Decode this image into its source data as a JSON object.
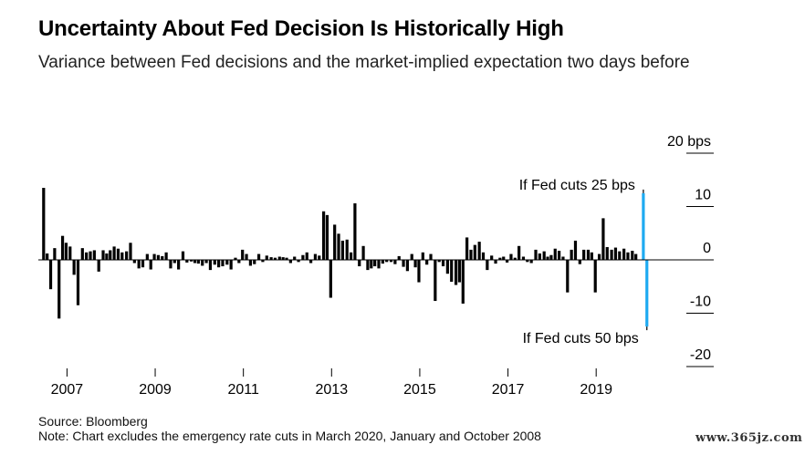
{
  "header": {
    "title": "Uncertainty About Fed Decision Is Historically High",
    "subtitle": "Variance between Fed decisions and the market-implied expectation two days before"
  },
  "footer": {
    "source": "Source: Bloomberg",
    "note": "Note: Chart excludes the emergency rate cuts in March 2020, January and October 2008"
  },
  "watermark": "www.365jz.com",
  "colors": {
    "bars": "#000000",
    "highlight": "#1eaaf1",
    "axis": "#000000"
  },
  "chart_data": {
    "type": "bar",
    "title": "Uncertainty About Fed Decision Is Historically High",
    "xlabel": "",
    "ylabel": "bps",
    "ylim": [
      -20,
      20
    ],
    "xlim": [
      2006.35,
      2020.3
    ],
    "y_ticks": [
      {
        "value": 20,
        "label": "20 bps"
      },
      {
        "value": 10,
        "label": "10"
      },
      {
        "value": 0,
        "label": "0"
      },
      {
        "value": -10,
        "label": "-10"
      },
      {
        "value": -20,
        "label": "-20"
      }
    ],
    "x_ticks": [
      {
        "value": 2007,
        "label": "2007"
      },
      {
        "value": 2009,
        "label": "2009"
      },
      {
        "value": 2011,
        "label": "2011"
      },
      {
        "value": 2013,
        "label": "2013"
      },
      {
        "value": 2015,
        "label": "2015"
      },
      {
        "value": 2017,
        "label": "2017"
      },
      {
        "value": 2019,
        "label": "2019"
      }
    ],
    "series": [
      {
        "name": "Variance (bps)",
        "values": [
          [
            2006.47,
            13.5
          ],
          [
            2006.55,
            1.2
          ],
          [
            2006.63,
            -5.5
          ],
          [
            2006.72,
            2.2
          ],
          [
            2006.82,
            -11
          ],
          [
            2006.9,
            4.5
          ],
          [
            2006.98,
            3.2
          ],
          [
            2007.07,
            2.5
          ],
          [
            2007.16,
            -2.8
          ],
          [
            2007.25,
            -8.5
          ],
          [
            2007.35,
            2.2
          ],
          [
            2007.44,
            1.4
          ],
          [
            2007.53,
            1.6
          ],
          [
            2007.62,
            1.8
          ],
          [
            2007.72,
            -2.2
          ],
          [
            2007.82,
            1.8
          ],
          [
            2007.9,
            1.2
          ],
          [
            2007.98,
            1.8
          ],
          [
            2008.07,
            2.5
          ],
          [
            2008.16,
            2.1
          ],
          [
            2008.25,
            1.4
          ],
          [
            2008.35,
            1.6
          ],
          [
            2008.44,
            3.2
          ],
          [
            2008.53,
            -0.6
          ],
          [
            2008.63,
            -1.6
          ],
          [
            2008.72,
            -1.4
          ],
          [
            2008.82,
            1.1
          ],
          [
            2008.9,
            -1.8
          ],
          [
            2008.98,
            1.1
          ],
          [
            2009.07,
            0.9
          ],
          [
            2009.16,
            0.7
          ],
          [
            2009.25,
            1.4
          ],
          [
            2009.35,
            -1.6
          ],
          [
            2009.44,
            -0.6
          ],
          [
            2009.53,
            -1.8
          ],
          [
            2009.63,
            1.6
          ],
          [
            2009.72,
            -0.5
          ],
          [
            2009.82,
            -0.3
          ],
          [
            2009.9,
            -0.6
          ],
          [
            2009.98,
            -0.7
          ],
          [
            2010.07,
            -1.1
          ],
          [
            2010.16,
            -0.6
          ],
          [
            2010.25,
            -1.9
          ],
          [
            2010.35,
            -0.9
          ],
          [
            2010.44,
            -1.4
          ],
          [
            2010.53,
            -1.2
          ],
          [
            2010.63,
            -0.9
          ],
          [
            2010.72,
            -1.8
          ],
          [
            2010.82,
            0.4
          ],
          [
            2010.9,
            -0.6
          ],
          [
            2010.98,
            1.9
          ],
          [
            2011.07,
            1.1
          ],
          [
            2011.16,
            -1.1
          ],
          [
            2011.25,
            -0.8
          ],
          [
            2011.35,
            1.1
          ],
          [
            2011.44,
            -0.4
          ],
          [
            2011.53,
            0.8
          ],
          [
            2011.63,
            0.5
          ],
          [
            2011.72,
            0.4
          ],
          [
            2011.82,
            0.6
          ],
          [
            2011.9,
            0.5
          ],
          [
            2011.98,
            0.4
          ],
          [
            2012.07,
            -0.6
          ],
          [
            2012.16,
            0.6
          ],
          [
            2012.25,
            -0.4
          ],
          [
            2012.35,
            0.9
          ],
          [
            2012.44,
            1.4
          ],
          [
            2012.53,
            -0.6
          ],
          [
            2012.63,
            1.1
          ],
          [
            2012.72,
            0.8
          ],
          [
            2012.82,
            9.1
          ],
          [
            2012.9,
            8.4
          ],
          [
            2012.98,
            -7.1
          ],
          [
            2013.07,
            6.6
          ],
          [
            2013.16,
            4.9
          ],
          [
            2013.25,
            3.6
          ],
          [
            2013.35,
            3.8
          ],
          [
            2013.44,
            1.4
          ],
          [
            2013.53,
            10.6
          ],
          [
            2013.63,
            -1.2
          ],
          [
            2013.72,
            2.6
          ],
          [
            2013.82,
            -1.9
          ],
          [
            2013.9,
            -1.6
          ],
          [
            2013.98,
            -1.2
          ],
          [
            2014.07,
            -1.6
          ],
          [
            2014.16,
            -0.7
          ],
          [
            2014.25,
            -0.4
          ],
          [
            2014.35,
            -0.4
          ],
          [
            2014.44,
            -0.8
          ],
          [
            2014.53,
            0.7
          ],
          [
            2014.63,
            -1.3
          ],
          [
            2014.72,
            -2.1
          ],
          [
            2014.82,
            1.1
          ],
          [
            2014.9,
            -1.4
          ],
          [
            2014.98,
            -4.2
          ],
          [
            2015.07,
            1.4
          ],
          [
            2015.16,
            -0.9
          ],
          [
            2015.25,
            1.1
          ],
          [
            2015.35,
            -7.7
          ],
          [
            2015.44,
            -0.4
          ],
          [
            2015.53,
            -1.2
          ],
          [
            2015.63,
            -2.6
          ],
          [
            2015.72,
            -4.1
          ],
          [
            2015.82,
            -4.7
          ],
          [
            2015.9,
            -4.2
          ],
          [
            2015.98,
            -8.2
          ],
          [
            2016.07,
            4.2
          ],
          [
            2016.16,
            1.9
          ],
          [
            2016.25,
            2.8
          ],
          [
            2016.35,
            3.4
          ],
          [
            2016.44,
            1.4
          ],
          [
            2016.53,
            -1.9
          ],
          [
            2016.63,
            0.8
          ],
          [
            2016.72,
            -0.7
          ],
          [
            2016.82,
            0.4
          ],
          [
            2016.9,
            0.6
          ],
          [
            2016.98,
            -0.5
          ],
          [
            2017.07,
            1.1
          ],
          [
            2017.16,
            0.4
          ],
          [
            2017.25,
            2.6
          ],
          [
            2017.35,
            0.6
          ],
          [
            2017.44,
            -0.4
          ],
          [
            2017.53,
            -0.6
          ],
          [
            2017.63,
            1.9
          ],
          [
            2017.72,
            1.2
          ],
          [
            2017.82,
            1.6
          ],
          [
            2017.9,
            0.6
          ],
          [
            2017.98,
            0.9
          ],
          [
            2018.07,
            2.1
          ],
          [
            2018.16,
            1.7
          ],
          [
            2018.25,
            0.6
          ],
          [
            2018.35,
            -6.1
          ],
          [
            2018.44,
            1.9
          ],
          [
            2018.53,
            3.6
          ],
          [
            2018.63,
            -0.8
          ],
          [
            2018.72,
            1.9
          ],
          [
            2018.82,
            1.9
          ],
          [
            2018.9,
            1.4
          ],
          [
            2018.98,
            -6.1
          ],
          [
            2019.07,
            1.1
          ],
          [
            2019.16,
            7.8
          ],
          [
            2019.25,
            2.4
          ],
          [
            2019.35,
            1.9
          ],
          [
            2019.44,
            2.3
          ],
          [
            2019.53,
            1.6
          ],
          [
            2019.63,
            2.1
          ],
          [
            2019.72,
            1.4
          ],
          [
            2019.82,
            1.7
          ],
          [
            2019.9,
            1.1
          ]
        ]
      },
      {
        "name": "If Fed cuts",
        "values": [
          [
            2020.07,
            12.5
          ],
          [
            2020.15,
            -12.5
          ]
        ]
      }
    ],
    "annotations": [
      {
        "text": "If Fed cuts 25 bps",
        "x": 2020.07,
        "y": 12.5
      },
      {
        "text": "If Fed cuts 50 bps",
        "x": 2020.15,
        "y": -12.5
      }
    ]
  }
}
